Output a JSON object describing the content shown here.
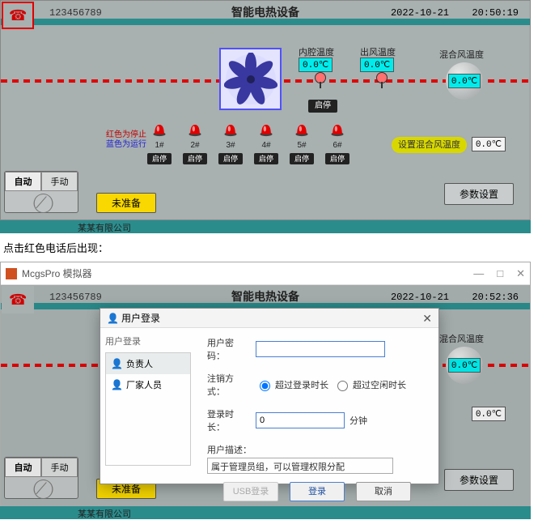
{
  "header": {
    "phone": "123456789",
    "title": "智能电热设备",
    "date": "2022-10-21",
    "time1": "20:50:19",
    "time2": "20:52:36"
  },
  "temps": {
    "cavity_label": "内腔温度",
    "cavity_value": "0.0℃",
    "outlet_label": "出风温度",
    "outlet_value": "0.0℃",
    "mix_label": "混合风温度",
    "mix_value": "0.0℃"
  },
  "fan_stop_btn": "启停",
  "legend": {
    "line1": "红色为停止",
    "line2": "蓝色为运行"
  },
  "lamps": [
    {
      "label": "1#",
      "btn": "启停"
    },
    {
      "label": "2#",
      "btn": "启停"
    },
    {
      "label": "3#",
      "btn": "启停"
    },
    {
      "label": "4#",
      "btn": "启停"
    },
    {
      "label": "5#",
      "btn": "启停"
    },
    {
      "label": "6#",
      "btn": "启停"
    }
  ],
  "set_temp": {
    "label": "设置混合风温度",
    "value": "0.0℃"
  },
  "mode": {
    "auto": "自动",
    "manual": "手动"
  },
  "not_ready": "未准备",
  "param_btn": "参数设置",
  "footer": "某某有限公司",
  "caption": "点击红色电话后出现：",
  "simulator": {
    "title": "McgsPro 模拟器"
  },
  "login": {
    "title": "用户登录",
    "left_title": "用户登录",
    "users": [
      {
        "name": "负责人"
      },
      {
        "name": "厂家人员"
      }
    ],
    "pwd_label": "用户密码：",
    "pwd_value": "",
    "logout_label": "注销方式：",
    "logout_opt1": "超过登录时长",
    "logout_opt2": "超过空闲时长",
    "duration_label": "登录时长：",
    "duration_value": "0",
    "duration_unit": "分钟",
    "desc_label": "用户描述：",
    "desc_value": "属于管理员组，可以管理权限分配",
    "btn_usb": "USB登录",
    "btn_login": "登录",
    "btn_cancel": "取消"
  },
  "colors": {
    "bg": "#a8b0b0",
    "teal": "#2b8c8c",
    "red": "#e00000",
    "cyan": "#00ecec",
    "yellow": "#f8d800",
    "olive": "#d8d800"
  }
}
